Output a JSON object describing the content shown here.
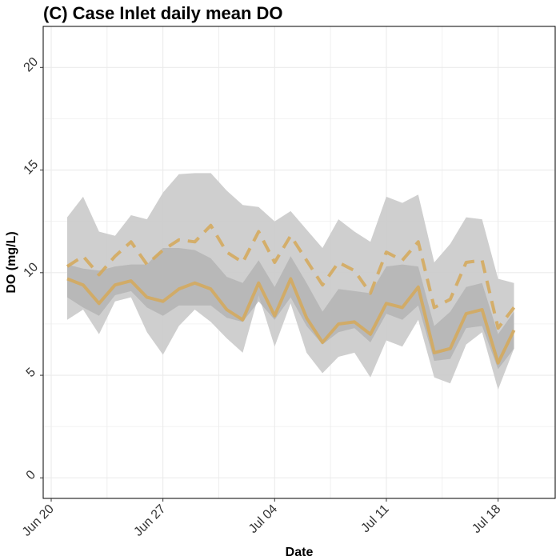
{
  "chart_data": {
    "type": "line",
    "title": "(C) Case Inlet daily mean DO",
    "xlabel": "Date",
    "ylabel": "DO (mg/L)",
    "ylim": [
      -1,
      22
    ],
    "yticks": [
      0,
      5,
      10,
      15,
      20
    ],
    "xticks": [
      "Jun 20",
      "Jun 27",
      "Jul 04",
      "Jul 11",
      "Jul 18"
    ],
    "xtick_day_index": [
      0,
      7,
      14,
      21,
      28
    ],
    "x_day_index": [
      1,
      2,
      3,
      4,
      5,
      6,
      7,
      8,
      9,
      10,
      11,
      12,
      13,
      14,
      15,
      16,
      17,
      18,
      19,
      20,
      21,
      22,
      23,
      24,
      25,
      26,
      27,
      28,
      29
    ],
    "grid": true,
    "legend": "none",
    "colors": {
      "line": "#d4aa5e",
      "outer_band": "#cccccc",
      "inner_band": "#b0b0b0",
      "grid": "#ebebeb",
      "panel_border": "#000000"
    },
    "series": [
      {
        "style": "solid",
        "values": [
          9.7,
          9.4,
          8.5,
          9.4,
          9.6,
          8.8,
          8.6,
          9.2,
          9.5,
          9.2,
          8.2,
          7.7,
          9.5,
          7.9,
          9.7,
          7.8,
          6.6,
          7.5,
          7.6,
          7.0,
          8.5,
          8.3,
          9.3,
          6.1,
          6.3,
          8.0,
          8.2,
          5.6,
          7.2
        ]
      },
      {
        "style": "dashed",
        "values": [
          10.3,
          10.8,
          9.9,
          10.8,
          11.5,
          10.4,
          11.1,
          11.6,
          11.5,
          12.3,
          11.0,
          10.5,
          12.0,
          10.5,
          11.8,
          10.6,
          9.4,
          10.5,
          10.1,
          9.0,
          11.0,
          10.6,
          11.5,
          8.3,
          8.7,
          10.5,
          10.6,
          7.3,
          8.3
        ]
      }
    ],
    "bands": [
      {
        "type": "outer",
        "lower": [
          7.7,
          8.2,
          7.0,
          8.6,
          8.8,
          7.1,
          6.0,
          7.4,
          8.2,
          7.6,
          6.8,
          6.1,
          8.9,
          6.4,
          8.5,
          6.1,
          5.1,
          5.9,
          6.1,
          4.9,
          6.7,
          6.4,
          7.7,
          4.9,
          4.6,
          6.5,
          7.1,
          4.3,
          6.3
        ],
        "upper": [
          12.7,
          13.7,
          12.0,
          11.8,
          12.8,
          12.6,
          13.9,
          14.8,
          14.85,
          14.85,
          14.0,
          13.3,
          13.2,
          12.5,
          13.0,
          12.1,
          11.2,
          12.6,
          12.0,
          11.5,
          13.7,
          13.4,
          13.8,
          10.5,
          11.4,
          12.7,
          12.6,
          9.7,
          9.5
        ]
      },
      {
        "type": "inner",
        "lower": [
          8.8,
          8.3,
          7.9,
          8.9,
          9.1,
          8.3,
          7.9,
          8.4,
          8.4,
          8.4,
          7.8,
          7.6,
          8.6,
          7.7,
          8.8,
          7.4,
          6.5,
          7.1,
          7.3,
          6.6,
          8.0,
          7.7,
          8.4,
          5.7,
          5.8,
          7.3,
          7.4,
          5.3,
          6.3
        ],
        "upper": [
          10.4,
          10.2,
          10.1,
          10.3,
          10.4,
          10.4,
          11.2,
          11.2,
          11.1,
          10.7,
          9.8,
          9.5,
          10.6,
          9.3,
          10.8,
          9.5,
          8.1,
          9.2,
          9.1,
          9.0,
          10.3,
          10.4,
          10.3,
          7.4,
          8.1,
          9.3,
          9.5,
          7.0,
          8.1
        ]
      }
    ]
  }
}
